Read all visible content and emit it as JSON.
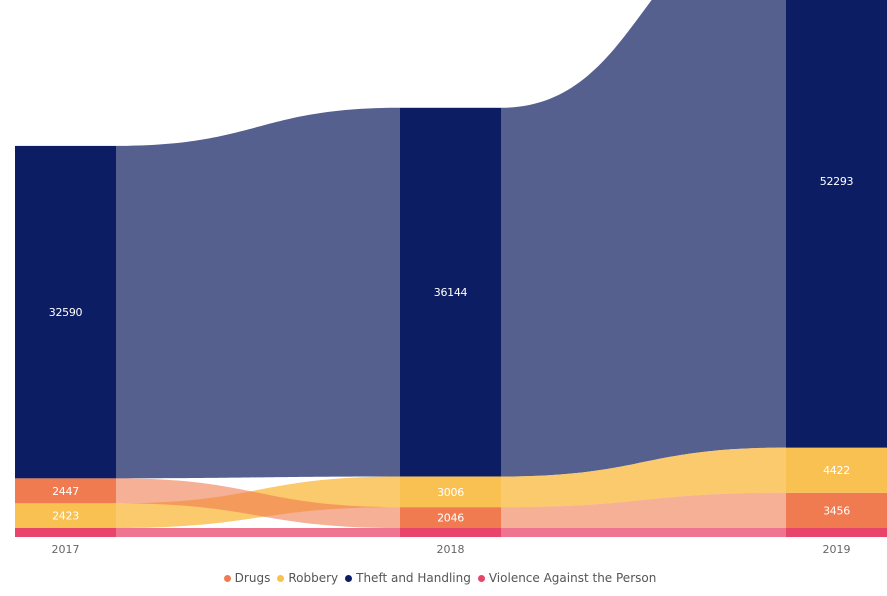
{
  "chart_data": {
    "type": "area",
    "subtype": "ribbon",
    "categories": [
      "2017",
      "2018",
      "2019"
    ],
    "series": [
      {
        "name": "Violence Against the Person",
        "values": [
          null,
          null,
          null
        ],
        "color": "#e8456b"
      },
      {
        "name": "Drugs",
        "values": [
          2447,
          2046,
          3456
        ],
        "color": "#f07b50"
      },
      {
        "name": "Robbery",
        "values": [
          2423,
          3006,
          4422
        ],
        "color": "#f9c152"
      },
      {
        "name": "Theft and Handling",
        "values": [
          32590,
          36144,
          52293
        ],
        "color": "#0d1d63"
      }
    ],
    "stack_order": {
      "2017": [
        "Violence Against the Person",
        "Robbery",
        "Drugs",
        "Theft and Handling"
      ],
      "2018": [
        "Violence Against the Person",
        "Drugs",
        "Robbery",
        "Theft and Handling"
      ],
      "2019": [
        "Violence Against the Person",
        "Drugs",
        "Robbery",
        "Theft and Handling"
      ]
    },
    "value_labels": {
      "Drugs": [
        "2447",
        "2046",
        "3456"
      ],
      "Robbery": [
        "2423",
        "3006",
        "4422"
      ],
      "Theft and Handling": [
        "32590",
        "36144",
        "52293"
      ]
    },
    "legend_position": "bottom-center",
    "grid": false,
    "title": "",
    "xlabel": "",
    "ylabel": ""
  },
  "legend": {
    "items": [
      {
        "label": "Drugs",
        "color": "#f07b50"
      },
      {
        "label": "Robbery",
        "color": "#f9c152"
      },
      {
        "label": "Theft and Handling",
        "color": "#0d1d63"
      },
      {
        "label": "Violence Against the Person",
        "color": "#e8456b"
      }
    ]
  }
}
